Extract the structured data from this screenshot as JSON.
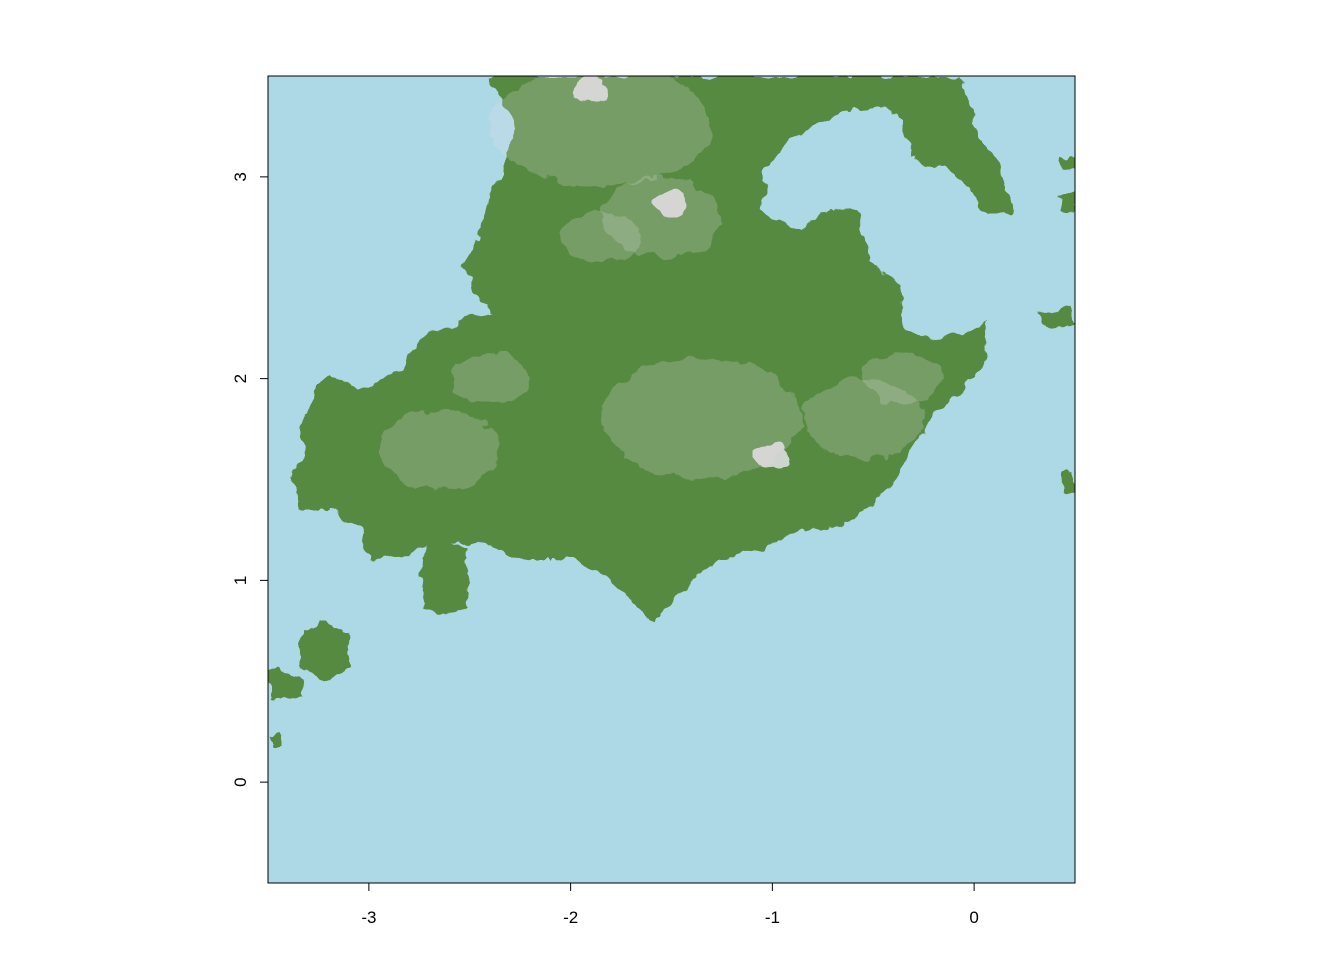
{
  "chart_data": {
    "type": "heatmap",
    "title": "",
    "xlabel": "",
    "ylabel": "",
    "xlim": [
      -3.5,
      0.5
    ],
    "ylim": [
      -0.5,
      3.5
    ],
    "x_ticks": [
      {
        "value": -3,
        "label": "-3"
      },
      {
        "value": -2,
        "label": "-2"
      },
      {
        "value": -1,
        "label": "-1"
      },
      {
        "value": 0,
        "label": "0"
      }
    ],
    "y_ticks": [
      {
        "value": 0,
        "label": "0"
      },
      {
        "value": 1,
        "label": "1"
      },
      {
        "value": 2,
        "label": "2"
      },
      {
        "value": 3,
        "label": "3"
      }
    ],
    "colors": {
      "water": "#add8e6",
      "land": "#548a40",
      "peak": "#e6e1e8",
      "frame": "#000000"
    },
    "peaks": [
      {
        "x": -1.9,
        "y": 3.43,
        "label": ""
      },
      {
        "x": -1.5,
        "y": 2.87,
        "label": ""
      },
      {
        "x": -1.0,
        "y": 1.62,
        "label": ""
      }
    ]
  }
}
